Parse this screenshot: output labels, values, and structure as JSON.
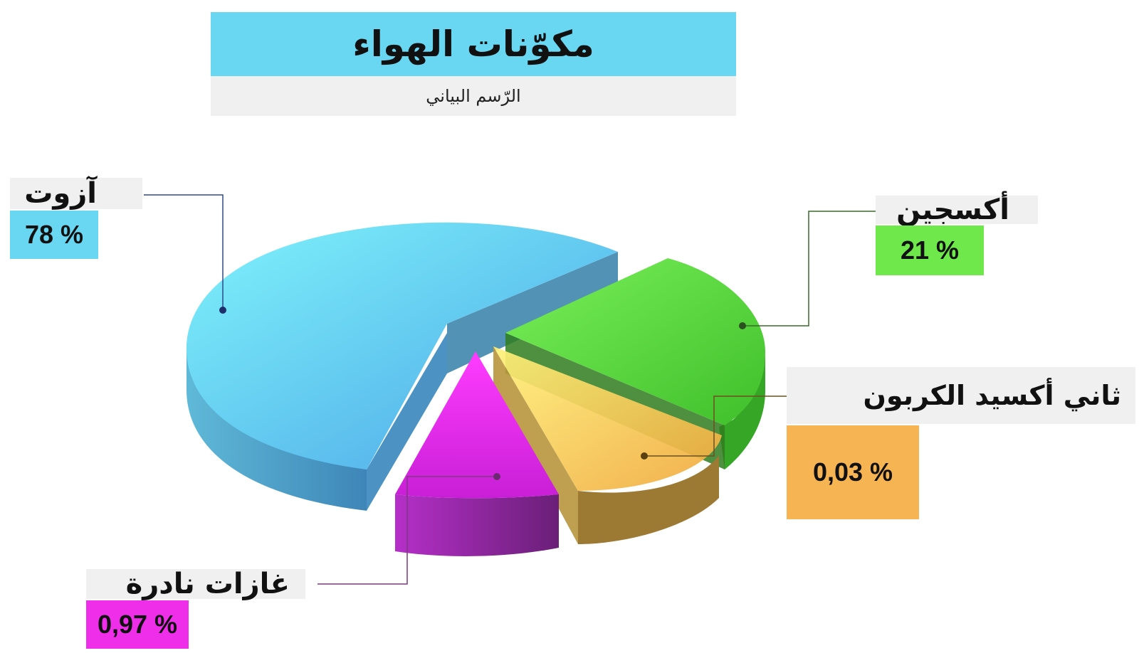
{
  "chart_data": {
    "type": "pie",
    "title": "مكوّنات الهواء",
    "subtitle": "الرّسم البياني",
    "slices": [
      {
        "name": "آزوت",
        "label": "78 %",
        "value": 78,
        "color": "#69d7f2"
      },
      {
        "name": "أكسجين",
        "label": "21 %",
        "value": 21,
        "color": "#6ee84a"
      },
      {
        "name": "ثاني أكسيد الكربون",
        "label": "0,03 %",
        "value": 0.03,
        "color": "#f7b452"
      },
      {
        "name": "غازات نادرة",
        "label": "0,97 %",
        "value": 0.97,
        "color": "#ee2ee8"
      }
    ],
    "legend": "callouts"
  }
}
